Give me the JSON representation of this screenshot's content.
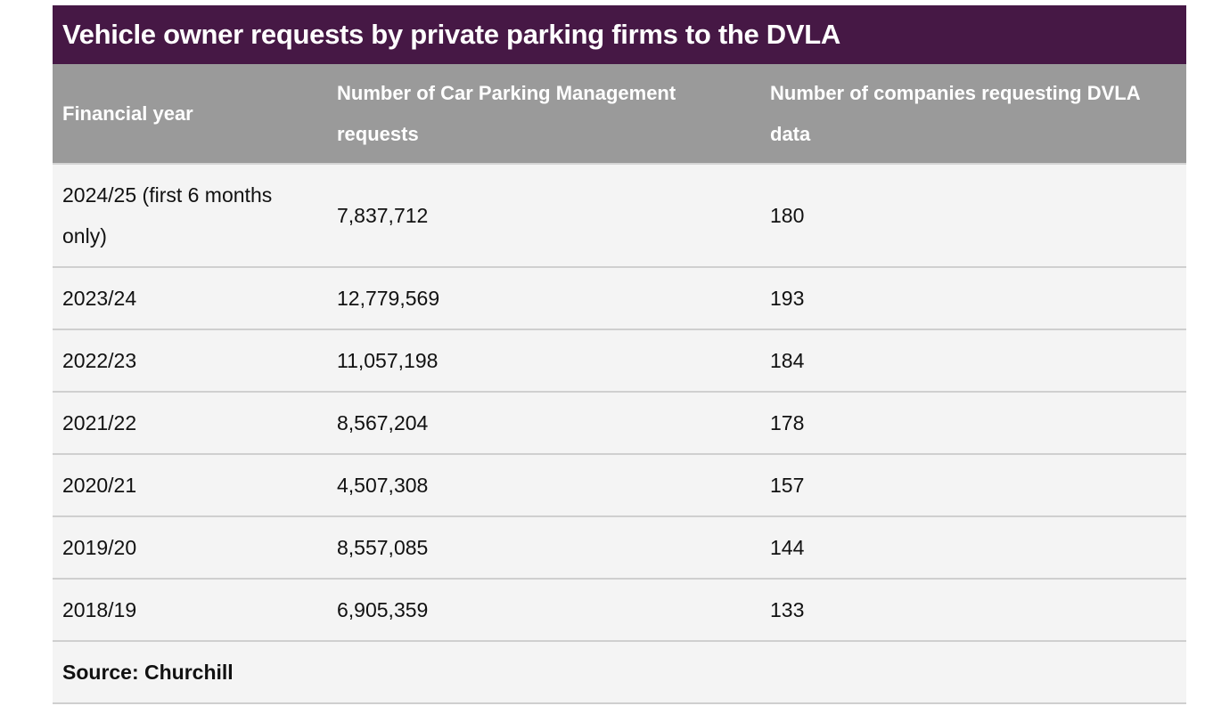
{
  "table": {
    "title": "Vehicle owner requests by private parking firms to the DVLA",
    "headers": [
      "Financial year",
      "Number of Car Parking Management requests",
      "Number of companies requesting DVLA data"
    ],
    "rows": [
      {
        "year": "2024/25 (first 6 months only)",
        "requests": "7,837,712",
        "companies": "180"
      },
      {
        "year": "2023/24",
        "requests": "12,779,569",
        "companies": "193"
      },
      {
        "year": "2022/23",
        "requests": "11,057,198",
        "companies": "184"
      },
      {
        "year": "2021/22",
        "requests": "8,567,204",
        "companies": "178"
      },
      {
        "year": "2020/21",
        "requests": "4,507,308",
        "companies": "157"
      },
      {
        "year": "2019/20",
        "requests": "8,557,085",
        "companies": "144"
      },
      {
        "year": "2018/19",
        "requests": "6,905,359",
        "companies": "133"
      }
    ],
    "source": "Source: Churchill"
  },
  "colors": {
    "title_background": "#461845",
    "header_background": "#9a9a9a",
    "row_background": "#f4f4f4"
  }
}
